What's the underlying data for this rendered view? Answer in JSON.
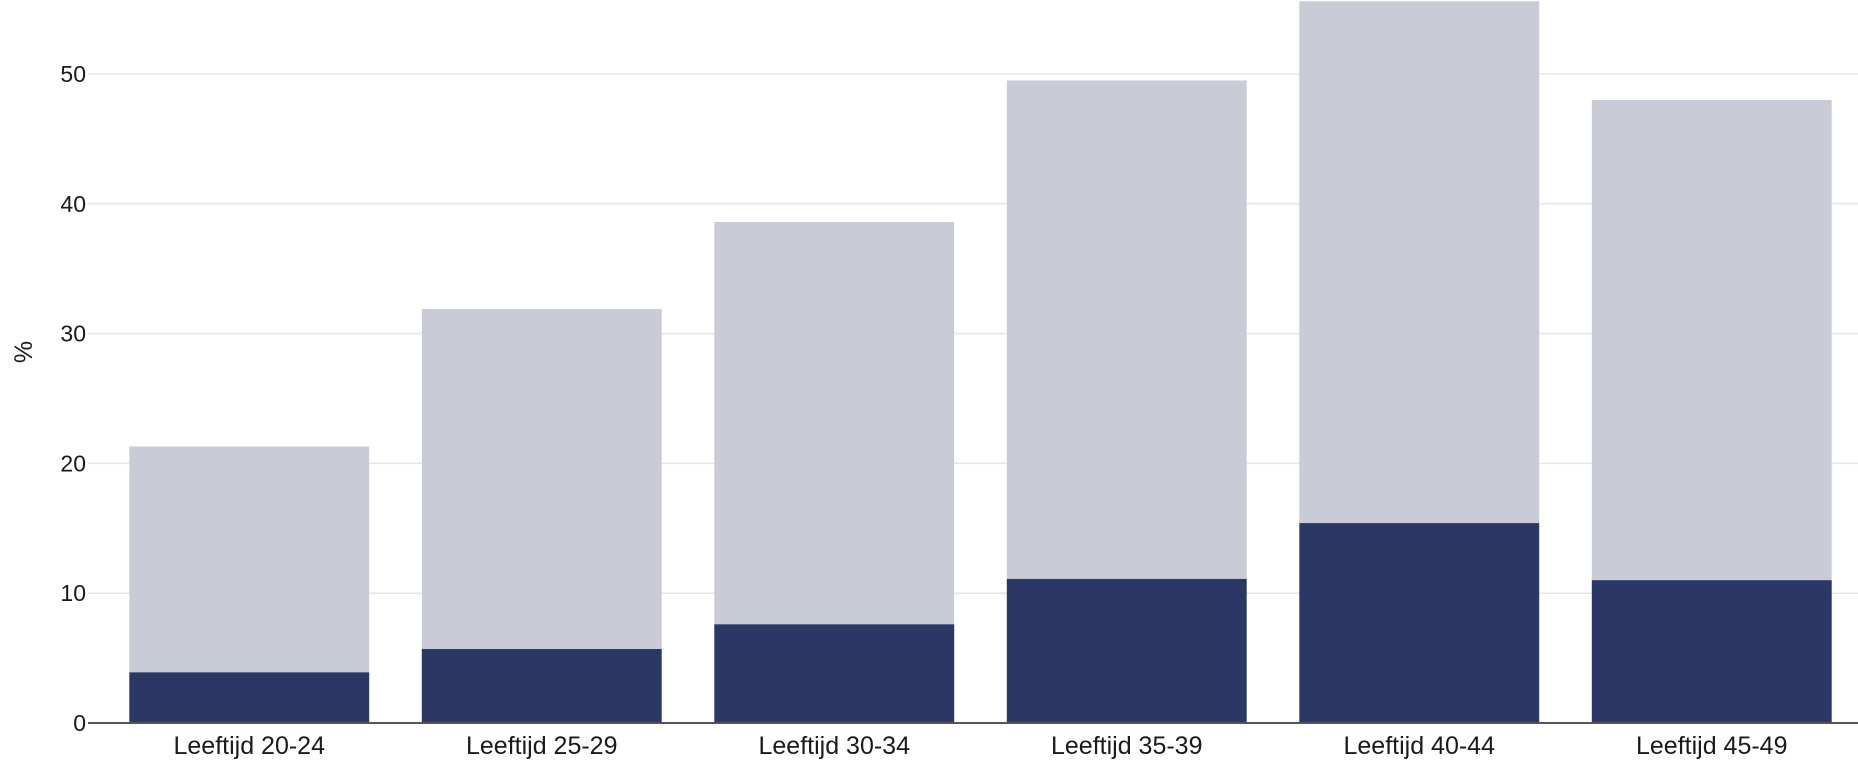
{
  "chart_data": {
    "type": "bar",
    "stacked": false,
    "overlapping": true,
    "ylabel": "%",
    "xlabel": "",
    "title": "",
    "ylim": [
      0,
      55.7
    ],
    "yticks": [
      0,
      10,
      20,
      30,
      40,
      50
    ],
    "grid": true,
    "categories": [
      "Leeftijd 20-24",
      "Leeftijd 25-29",
      "Leeftijd 30-34",
      "Leeftijd 35-39",
      "Leeftijd 40-44",
      "Leeftijd 45-49"
    ],
    "series": [
      {
        "values": [
          21.3,
          31.9,
          38.6,
          49.5,
          55.6,
          48.0
        ],
        "color": "#c9cbd7"
      },
      {
        "values": [
          3.9,
          5.7,
          7.6,
          11.1,
          15.4,
          11.0
        ],
        "color": "#2b3765"
      }
    ]
  }
}
